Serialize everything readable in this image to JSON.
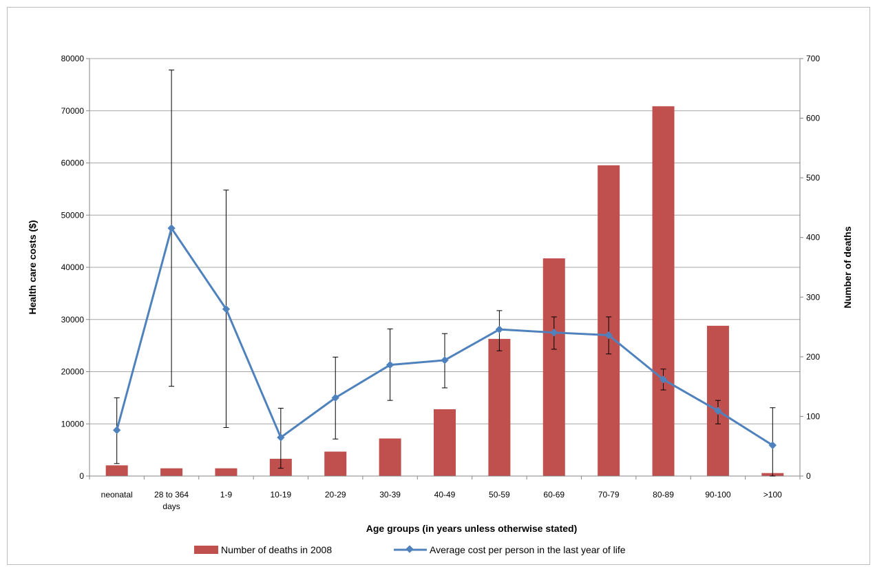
{
  "chart_data": {
    "type": "bar",
    "title": "",
    "xlabel": "Age groups (in years unless  otherwise stated)",
    "ylabel_left": "Health care costs ($)",
    "ylabel_right": "Number of deaths",
    "categories": [
      [
        "neonatal"
      ],
      [
        "28 to 364",
        "days"
      ],
      [
        "1-9"
      ],
      [
        "10-19"
      ],
      [
        "20-29"
      ],
      [
        "30-39"
      ],
      [
        "40-49"
      ],
      [
        "50-59"
      ],
      [
        "60-69"
      ],
      [
        "70-79"
      ],
      [
        "80-89"
      ],
      [
        "90-100"
      ],
      [
        ">100"
      ]
    ],
    "ylim_left": [
      0,
      80000
    ],
    "ylim_right": [
      0,
      700
    ],
    "yticks_left": [
      "0",
      "10000",
      "20000",
      "30000",
      "40000",
      "50000",
      "60000",
      "70000",
      "80000"
    ],
    "yticks_right": [
      "0",
      "100",
      "200",
      "300",
      "400",
      "500",
      "600",
      "700"
    ],
    "grid": "horizontal",
    "legend_position": "bottom",
    "series": [
      {
        "name": "Number of deaths in 2008",
        "kind": "bar",
        "axis": "right",
        "color": "#c0504d",
        "values": [
          18,
          13,
          13,
          29,
          41,
          63,
          112,
          230,
          365,
          521,
          620,
          252,
          5
        ]
      },
      {
        "name": "Average cost per person in the last year of life",
        "kind": "line",
        "axis": "left",
        "color": "#4f81bd",
        "values": [
          8800,
          47500,
          32000,
          7400,
          15000,
          21300,
          22200,
          28100,
          27500,
          27000,
          18500,
          12500,
          5900
        ],
        "error_low": [
          2400,
          17200,
          9300,
          1500,
          7100,
          14500,
          16900,
          24000,
          24300,
          23400,
          16500,
          10000,
          0
        ],
        "error_high": [
          15000,
          77800,
          54800,
          13000,
          22800,
          28200,
          27300,
          31700,
          30500,
          30500,
          20500,
          14500,
          13100
        ]
      }
    ]
  }
}
